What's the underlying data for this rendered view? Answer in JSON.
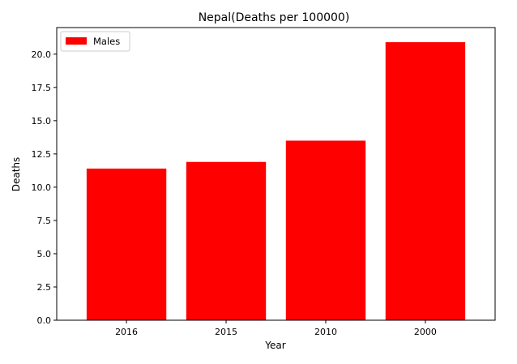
{
  "chart_data": {
    "type": "bar",
    "title": "Nepal(Deaths per 100000)",
    "xlabel": "Year",
    "ylabel": "Deaths",
    "categories": [
      "2016",
      "2015",
      "2010",
      "2000"
    ],
    "series": [
      {
        "name": "Males",
        "values": [
          11.4,
          11.9,
          13.5,
          20.9
        ]
      }
    ],
    "ylim": [
      0,
      22
    ],
    "yticks": [
      "0.0",
      "2.5",
      "5.0",
      "7.5",
      "10.0",
      "12.5",
      "15.0",
      "17.5",
      "20.0"
    ],
    "bar_color": "#ff0000",
    "grid": false,
    "legend_position": "upper-left"
  }
}
